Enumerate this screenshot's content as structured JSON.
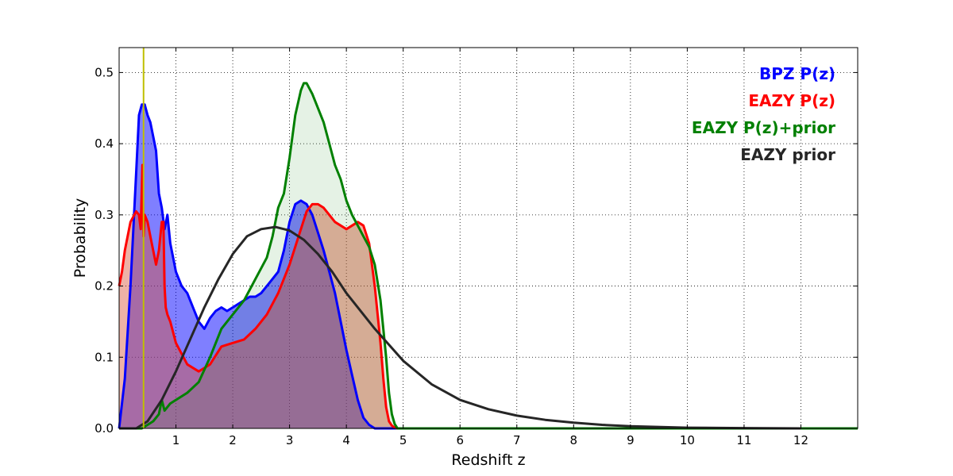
{
  "chart_data": {
    "type": "area",
    "xlabel": "Redshift z",
    "ylabel": "Probability",
    "xlim": [
      0,
      13
    ],
    "ylim": [
      0,
      0.535
    ],
    "xticks": [
      1,
      2,
      3,
      4,
      5,
      6,
      7,
      8,
      9,
      10,
      11,
      12
    ],
    "xtick_labels": [
      "1",
      "2",
      "3",
      "4",
      "5",
      "6",
      "7",
      "8",
      "9",
      "10",
      "11",
      "12"
    ],
    "yticks": [
      0.0,
      0.1,
      0.2,
      0.3,
      0.4,
      0.5
    ],
    "ytick_labels": [
      "0.0",
      "0.1",
      "0.2",
      "0.3",
      "0.4",
      "0.5"
    ],
    "grid": true,
    "legend_placement": "top-right",
    "vline": {
      "x": 0.43,
      "color": "#bfbf00"
    },
    "series": [
      {
        "name": "BPZ P(z)",
        "color": "#0000ff",
        "fill": "#0000ff",
        "fill_opacity": 0.5,
        "x": [
          0,
          0.1,
          0.2,
          0.25,
          0.3,
          0.35,
          0.4,
          0.45,
          0.5,
          0.55,
          0.6,
          0.65,
          0.7,
          0.75,
          0.8,
          0.85,
          0.9,
          0.95,
          1.0,
          1.05,
          1.1,
          1.2,
          1.3,
          1.35,
          1.4,
          1.5,
          1.6,
          1.7,
          1.8,
          1.9,
          2.0,
          2.1,
          2.2,
          2.3,
          2.4,
          2.5,
          2.6,
          2.7,
          2.8,
          2.9,
          3.0,
          3.1,
          3.2,
          3.3,
          3.4,
          3.5,
          3.6,
          3.7,
          3.8,
          3.9,
          4.0,
          4.1,
          4.2,
          4.3,
          4.4,
          4.5,
          4.6,
          4.7,
          4.8,
          4.9,
          5.0,
          13
        ],
        "values": [
          0.0,
          0.07,
          0.2,
          0.28,
          0.36,
          0.44,
          0.455,
          0.455,
          0.44,
          0.43,
          0.41,
          0.39,
          0.33,
          0.31,
          0.28,
          0.3,
          0.26,
          0.24,
          0.22,
          0.21,
          0.2,
          0.19,
          0.17,
          0.16,
          0.15,
          0.14,
          0.155,
          0.165,
          0.17,
          0.165,
          0.17,
          0.175,
          0.18,
          0.185,
          0.185,
          0.19,
          0.2,
          0.21,
          0.22,
          0.25,
          0.29,
          0.315,
          0.32,
          0.315,
          0.3,
          0.275,
          0.25,
          0.22,
          0.19,
          0.15,
          0.11,
          0.075,
          0.04,
          0.015,
          0.005,
          0.0,
          0.0,
          0.0,
          0.0,
          0.0,
          0.0,
          0.0
        ]
      },
      {
        "name": "EAZY P(z)",
        "color": "#ff0000",
        "fill": "#d9553a",
        "fill_opacity": 0.45,
        "x": [
          0,
          0.05,
          0.1,
          0.2,
          0.3,
          0.35,
          0.38,
          0.41,
          0.43,
          0.45,
          0.5,
          0.55,
          0.6,
          0.65,
          0.7,
          0.75,
          0.78,
          0.8,
          0.82,
          0.85,
          0.9,
          1.0,
          1.2,
          1.4,
          1.6,
          1.8,
          2.0,
          2.2,
          2.4,
          2.6,
          2.8,
          3.0,
          3.2,
          3.3,
          3.4,
          3.5,
          3.6,
          3.8,
          4.0,
          4.2,
          4.3,
          4.4,
          4.5,
          4.6,
          4.65,
          4.7,
          4.75,
          4.8,
          4.85,
          4.9,
          5.0,
          13
        ],
        "values": [
          0.2,
          0.22,
          0.25,
          0.29,
          0.305,
          0.3,
          0.28,
          0.37,
          0.27,
          0.3,
          0.29,
          0.27,
          0.25,
          0.23,
          0.25,
          0.29,
          0.29,
          0.2,
          0.17,
          0.16,
          0.15,
          0.12,
          0.09,
          0.08,
          0.09,
          0.115,
          0.12,
          0.125,
          0.14,
          0.16,
          0.19,
          0.23,
          0.28,
          0.305,
          0.315,
          0.315,
          0.31,
          0.29,
          0.28,
          0.29,
          0.285,
          0.26,
          0.2,
          0.12,
          0.07,
          0.03,
          0.01,
          0.004,
          0.001,
          0.0,
          0.0,
          0.0
        ]
      },
      {
        "name": "EAZY P(z)+prior",
        "color": "#008000",
        "fill": "#008000",
        "fill_opacity": 0.1,
        "x": [
          0,
          0.3,
          0.4,
          0.5,
          0.6,
          0.7,
          0.75,
          0.8,
          0.9,
          1.0,
          1.2,
          1.4,
          1.6,
          1.8,
          2.0,
          2.2,
          2.4,
          2.6,
          2.7,
          2.8,
          2.9,
          3.0,
          3.1,
          3.2,
          3.25,
          3.3,
          3.4,
          3.5,
          3.6,
          3.7,
          3.8,
          3.9,
          4.0,
          4.1,
          4.2,
          4.3,
          4.4,
          4.5,
          4.6,
          4.7,
          4.75,
          4.8,
          4.85,
          4.9,
          5.0,
          13
        ],
        "values": [
          0.0,
          0.0,
          0.0,
          0.005,
          0.01,
          0.02,
          0.04,
          0.025,
          0.035,
          0.04,
          0.05,
          0.065,
          0.1,
          0.14,
          0.16,
          0.18,
          0.21,
          0.24,
          0.27,
          0.31,
          0.33,
          0.38,
          0.44,
          0.475,
          0.485,
          0.485,
          0.47,
          0.45,
          0.43,
          0.4,
          0.37,
          0.35,
          0.32,
          0.3,
          0.285,
          0.27,
          0.255,
          0.23,
          0.18,
          0.1,
          0.05,
          0.02,
          0.006,
          0.0,
          0.0,
          0.0
        ]
      },
      {
        "name": "EAZY prior",
        "color": "#262626",
        "fill": "none",
        "fill_opacity": 0,
        "x": [
          0,
          0.3,
          0.5,
          0.75,
          1.0,
          1.25,
          1.5,
          1.75,
          2.0,
          2.25,
          2.5,
          2.75,
          3.0,
          3.25,
          3.5,
          3.75,
          4.0,
          4.5,
          5.0,
          5.5,
          6.0,
          6.5,
          7.0,
          7.5,
          8.0,
          8.5,
          9.0,
          10.0,
          11.0,
          12.0
        ],
        "values": [
          0.0,
          0.0,
          0.01,
          0.04,
          0.08,
          0.125,
          0.17,
          0.21,
          0.245,
          0.27,
          0.28,
          0.283,
          0.278,
          0.265,
          0.245,
          0.22,
          0.19,
          0.14,
          0.095,
          0.062,
          0.04,
          0.027,
          0.018,
          0.012,
          0.008,
          0.005,
          0.003,
          0.001,
          0.0005,
          0.0
        ]
      }
    ]
  }
}
